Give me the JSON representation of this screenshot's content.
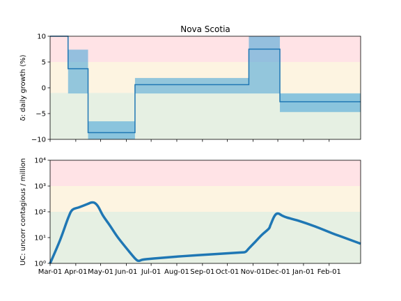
{
  "chart_data": [
    {
      "type": "line",
      "title": "Nova Scotia",
      "xlabel": "",
      "ylabel": "δ: daily growth (%)",
      "ylim": [
        -10,
        10
      ],
      "yticks": [
        "10",
        "5",
        "0",
        "−5",
        "−10"
      ],
      "ytick_values": [
        10,
        5,
        0,
        -5,
        -10
      ],
      "xtick_labels": [],
      "bands": [
        {
          "from": 5,
          "to": 10,
          "color": "#ffe3e6"
        },
        {
          "from": -1,
          "to": 5,
          "color": "#fdf4e1"
        },
        {
          "from": -10,
          "to": -1,
          "color": "#e6f0e3"
        }
      ],
      "series": [
        {
          "step": [
            {
              "x0": 0,
              "x1": 26,
              "y": 12
            },
            {
              "x0": 26,
              "x1": 55,
              "y": 3.7
            },
            {
              "x0": 55,
              "x1": 123,
              "y": -8.7
            },
            {
              "x0": 123,
              "x1": 288,
              "y": 0.6
            },
            {
              "x0": 288,
              "x1": 333,
              "y": 7.5
            },
            {
              "x0": 333,
              "x1": 450,
              "y": -2.7
            }
          ],
          "color": "#1f77b4"
        }
      ],
      "uncertainty": [
        {
          "x0": 26,
          "x1": 55,
          "lo": -1.1,
          "hi": 7.4
        },
        {
          "x0": 55,
          "x1": 123,
          "lo": -10,
          "hi": -6.5
        },
        {
          "x0": 123,
          "x1": 288,
          "lo": -1.1,
          "hi": 1.9
        },
        {
          "x0": 288,
          "x1": 333,
          "lo": -1.1,
          "hi": 10
        },
        {
          "x0": 333,
          "x1": 450,
          "lo": -4.7,
          "hi": -1.1
        }
      ],
      "xlim": [
        0,
        450
      ]
    },
    {
      "type": "line",
      "title": "",
      "xlabel": "",
      "ylabel": "UC: uncorr contagious / million",
      "scale": "log",
      "ylim": [
        1,
        10000
      ],
      "yticks": [
        "10⁴",
        "10³",
        "10²",
        "10¹",
        "10⁰"
      ],
      "ytick_values": [
        10000,
        1000,
        100,
        10,
        1
      ],
      "xtick_labels": [
        "Mar-01",
        "Apr-01",
        "May-01",
        "Jun-01",
        "Jul-01",
        "Aug-01",
        "Sep-01",
        "Oct-01",
        "Nov-01",
        "Dec-01",
        "Jan-01",
        "Feb-01"
      ],
      "xtick_values": [
        0,
        31,
        61,
        92,
        122,
        153,
        184,
        214,
        245,
        275,
        306,
        337
      ],
      "bands": [
        {
          "from": 1000,
          "to": 10000,
          "color": "#ffe3e6"
        },
        {
          "from": 100,
          "to": 1000,
          "color": "#fdf4e1"
        },
        {
          "from": 1,
          "to": 100,
          "color": "#e6f0e3"
        }
      ],
      "series": [
        {
          "points": [
            [
              0,
              1
            ],
            [
              12,
              8
            ],
            [
              22,
              60
            ],
            [
              27,
              120
            ],
            [
              35,
              150
            ],
            [
              45,
              200
            ],
            [
              50,
              230
            ],
            [
              54,
              220
            ],
            [
              58,
              160
            ],
            [
              64,
              70
            ],
            [
              72,
              30
            ],
            [
              82,
              10
            ],
            [
              95,
              3
            ],
            [
              103,
              1.5
            ],
            [
              107,
              1.25
            ],
            [
              112,
              1.4
            ],
            [
              125,
              1.55
            ],
            [
              160,
              1.9
            ],
            [
              200,
              2.3
            ],
            [
              230,
              2.65
            ],
            [
              236,
              2.8
            ],
            [
              240,
              3.8
            ],
            [
              248,
              7
            ],
            [
              256,
              13
            ],
            [
              264,
              22
            ],
            [
              266,
              30
            ],
            [
              270,
              60
            ],
            [
              273,
              82
            ],
            [
              276,
              85
            ],
            [
              280,
              72
            ],
            [
              286,
              60
            ],
            [
              300,
              45
            ],
            [
              320,
              27
            ],
            [
              340,
              15
            ],
            [
              355,
              10
            ],
            [
              375,
              5.8
            ]
          ],
          "color": "#1f77b4"
        }
      ],
      "xlim": [
        0,
        375
      ]
    }
  ]
}
